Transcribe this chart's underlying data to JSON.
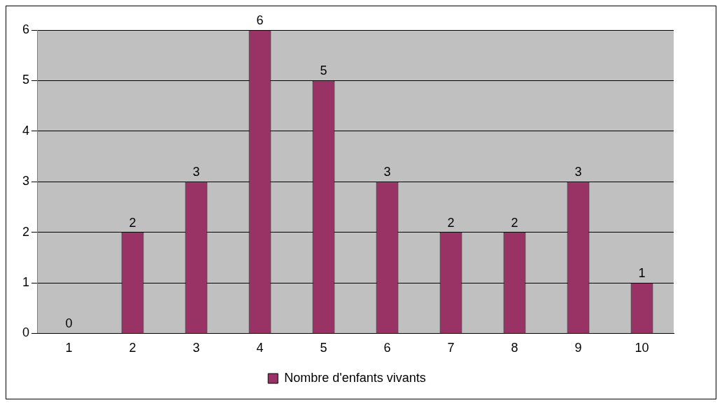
{
  "chart_data": {
    "type": "bar",
    "categories": [
      "1",
      "2",
      "3",
      "4",
      "5",
      "6",
      "7",
      "8",
      "9",
      "10"
    ],
    "series": [
      {
        "name": "Nombre d'enfants vivants",
        "color": "#993366",
        "values": [
          0,
          2,
          3,
          6,
          5,
          3,
          2,
          2,
          3,
          1
        ]
      }
    ],
    "ylim": [
      0,
      6
    ],
    "yticks": [
      0,
      1,
      2,
      3,
      4,
      5,
      6
    ],
    "grid": "y",
    "legend": "bottom",
    "data_labels": true
  }
}
